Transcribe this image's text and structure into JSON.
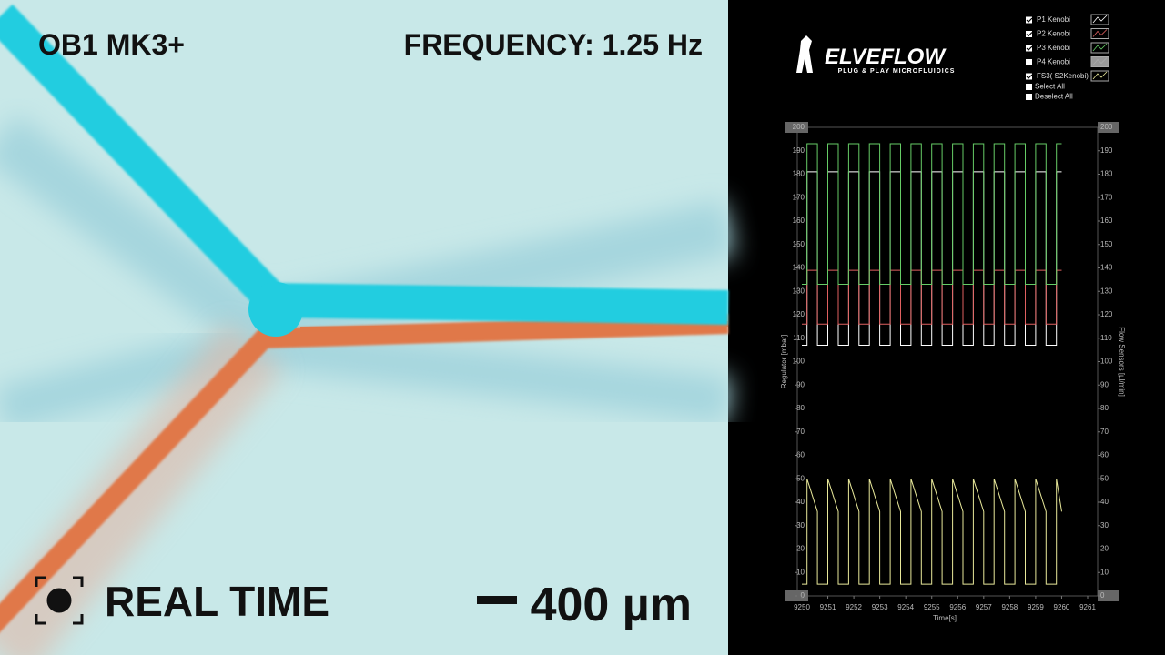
{
  "video": {
    "title": "OB1 MK3+",
    "frequency": "FREQUENCY: 1.25 Hz",
    "mode": "REAL TIME",
    "scale": "400 µm"
  },
  "logo": {
    "name": "ELVEFLOW",
    "tagline": "PLUG & PLAY MICROFLUIDICS"
  },
  "chart_data": {
    "type": "line",
    "xlabel": "Time[s]",
    "ylabel": "Regulator [mbar]",
    "y2label": "Flow Sensors [µl/min]",
    "xlim": [
      9250,
      9261
    ],
    "xticks": [
      9250,
      9251,
      9252,
      9253,
      9254,
      9255,
      9256,
      9257,
      9258,
      9259,
      9260,
      9261
    ],
    "ylim": [
      0,
      200
    ],
    "yticks": [
      0,
      10,
      20,
      30,
      40,
      50,
      60,
      70,
      80,
      90,
      100,
      110,
      120,
      130,
      140,
      150,
      160,
      170,
      180,
      190,
      200
    ],
    "y2lim": [
      0,
      200
    ],
    "y2ticks": [
      0,
      10,
      20,
      30,
      40,
      50,
      60,
      70,
      80,
      90,
      100,
      110,
      120,
      130,
      140,
      150,
      160,
      170,
      180,
      190,
      200
    ],
    "x": [
      9250,
      9250.2,
      9250.2,
      9250.6,
      9250.6,
      9251,
      9251,
      9251.4,
      9251.4,
      9251.8,
      9251.8,
      9252.2,
      9252.2,
      9252.6,
      9252.6,
      9253,
      9253,
      9253.4,
      9253.4,
      9253.8,
      9253.8,
      9254.2,
      9254.2,
      9254.6,
      9254.6,
      9255,
      9255,
      9255.4,
      9255.4,
      9255.8,
      9255.8,
      9256.2,
      9256.2,
      9256.6,
      9256.6,
      9257,
      9257,
      9257.4,
      9257.4,
      9257.8,
      9257.8,
      9258.2,
      9258.2,
      9258.6,
      9258.6,
      9259,
      9259,
      9259.4,
      9259.4,
      9259.8,
      9259.8,
      9260
    ],
    "series": [
      {
        "name": "P1 Kenobi",
        "checked": true,
        "color": "#ffffff",
        "values": [
          107,
          107,
          181,
          181,
          107,
          107,
          181,
          181,
          107,
          107,
          181,
          181,
          107,
          107,
          181,
          181,
          107,
          107,
          181,
          181,
          107,
          107,
          181,
          181,
          107,
          107,
          181,
          181,
          107,
          107,
          181,
          181,
          107,
          107,
          181,
          181,
          107,
          107,
          181,
          181,
          107,
          107,
          181,
          181,
          107,
          107,
          181,
          181,
          107,
          107,
          181,
          181
        ]
      },
      {
        "name": "P2 Kenobi",
        "checked": true,
        "color": "#e06060",
        "values": [
          116,
          116,
          139,
          139,
          116,
          116,
          139,
          139,
          116,
          116,
          139,
          139,
          116,
          116,
          139,
          139,
          116,
          116,
          139,
          139,
          116,
          116,
          139,
          139,
          116,
          116,
          139,
          139,
          116,
          116,
          139,
          139,
          116,
          116,
          139,
          139,
          116,
          116,
          139,
          139,
          116,
          116,
          139,
          139,
          116,
          116,
          139,
          139,
          116,
          116,
          139,
          139
        ]
      },
      {
        "name": "P3 Kenobi",
        "checked": true,
        "color": "#66cc66",
        "values": [
          133,
          133,
          193,
          193,
          133,
          133,
          193,
          193,
          133,
          133,
          193,
          193,
          133,
          133,
          193,
          193,
          133,
          133,
          193,
          193,
          133,
          133,
          193,
          193,
          133,
          133,
          193,
          193,
          133,
          133,
          193,
          193,
          133,
          133,
          193,
          193,
          133,
          133,
          193,
          193,
          133,
          133,
          193,
          193,
          133,
          133,
          193,
          193,
          133,
          133,
          193,
          193
        ]
      },
      {
        "name": "P4 Kenobi",
        "checked": false,
        "color": "#aaaaaa"
      },
      {
        "name": "FS3( S2Kenobi)",
        "checked": true,
        "color": "#e8e89a",
        "axis": "y2",
        "values": [
          5,
          5,
          50,
          36,
          5,
          5,
          50,
          36,
          5,
          5,
          50,
          36,
          5,
          5,
          50,
          36,
          5,
          5,
          50,
          36,
          5,
          5,
          50,
          36,
          5,
          5,
          50,
          36,
          5,
          5,
          50,
          36,
          5,
          5,
          50,
          36,
          5,
          5,
          50,
          36,
          5,
          5,
          50,
          36,
          5,
          5,
          50,
          36,
          5,
          5,
          50,
          36
        ]
      }
    ],
    "legend_actions": [
      "Select All",
      "Deselect All"
    ]
  }
}
